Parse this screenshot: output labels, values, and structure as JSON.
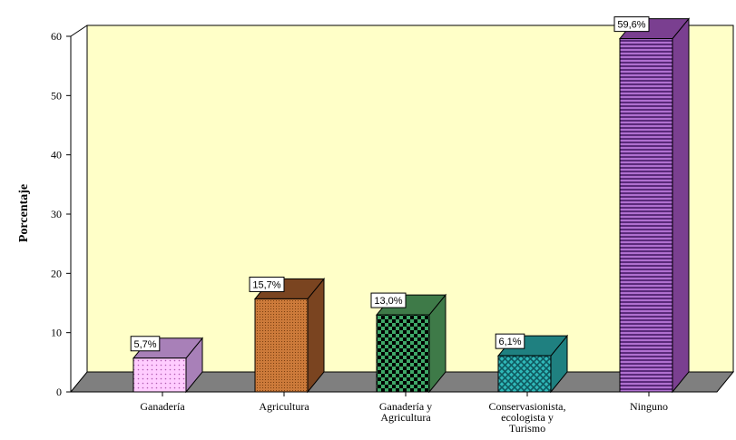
{
  "chart_data": {
    "type": "bar",
    "title": "",
    "xlabel": "",
    "ylabel": "Porcentaje",
    "ylim": [
      0,
      60
    ],
    "yticks": [
      0,
      10,
      20,
      30,
      40,
      50,
      60
    ],
    "grid": false,
    "legend": "none",
    "three_d": true,
    "wall_color": "#FFFFC8",
    "floor_color": "#7F7F7F",
    "categories": [
      {
        "lines": [
          "Ganadería"
        ]
      },
      {
        "lines": [
          "Agricultura"
        ]
      },
      {
        "lines": [
          "Ganadería y",
          "Agricultura"
        ]
      },
      {
        "lines": [
          "Conservasionista,",
          "ecologista y",
          "Turismo"
        ]
      },
      {
        "lines": [
          "Ninguno"
        ]
      }
    ],
    "values": [
      5.7,
      15.7,
      13.0,
      6.1,
      59.6
    ],
    "data_labels": [
      "5,7%",
      "15,7%",
      "13,0%",
      "6,1%",
      "59,6%"
    ],
    "bar_styles": [
      {
        "pattern": "dots",
        "bg": "#FFCCFF",
        "fg": "#B05CB0",
        "side": "#A880B8"
      },
      {
        "pattern": "dense-dots",
        "bg": "#CC7A3A",
        "fg": "#7A3F10",
        "side": "#7A4420"
      },
      {
        "pattern": "checker",
        "bg": "#3FA868",
        "fg": "#000000",
        "side": "#3E7A48"
      },
      {
        "pattern": "crosshatch",
        "bg": "#2FB8B8",
        "fg": "#0F5A60",
        "side": "#1F8080"
      },
      {
        "pattern": "hlines",
        "bg": "#B070D0",
        "fg": "#5A2A7A",
        "side": "#7A3F90"
      }
    ]
  }
}
